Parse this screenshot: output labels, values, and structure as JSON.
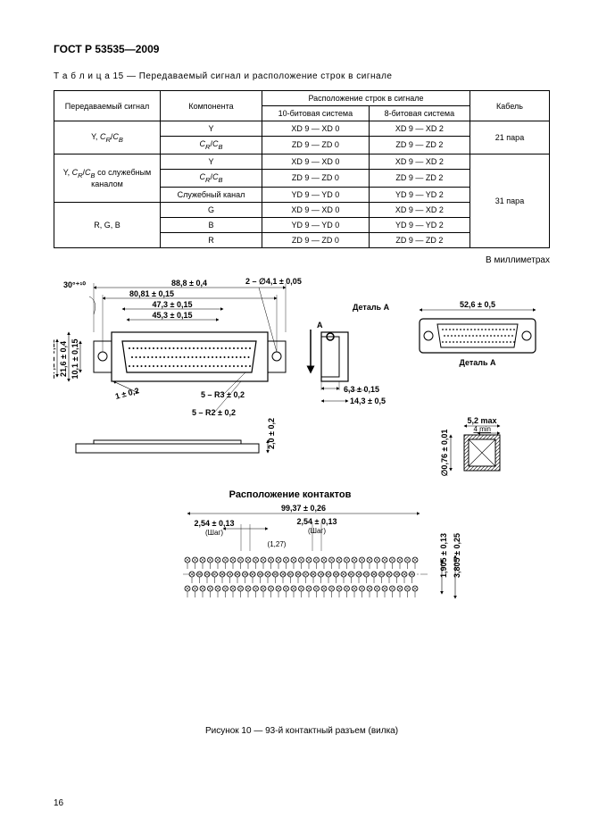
{
  "doc_id": "ГОСТ Р 53535—2009",
  "table_caption": "Т а б л и ц а  15 — Передаваемый сигнал и расположение строк в сигнале",
  "headers": {
    "signal": "Передаваемый сигнал",
    "component": "Компонента",
    "lines_group": "Расположение строк в сигнале",
    "sys10": "10-битовая система",
    "sys8": "8-битовая система",
    "cable": "Кабель"
  },
  "rows": [
    {
      "signal": "Y, Cᵣ/C_B",
      "component": "Y",
      "s10": "XD 9 — XD 0",
      "s8": "XD 9 — XD 2",
      "cable": "21 пара",
      "sigspan": 2,
      "cabspan": 2
    },
    {
      "component": "Cᵣ/C_B",
      "s10": "ZD 9 — ZD 0",
      "s8": "ZD 9 — ZD 2"
    },
    {
      "signal": "Y, Cᵣ/C_B со служебным каналом",
      "component": "Y",
      "s10": "XD 9 — XD 0",
      "s8": "XD 9 — XD 2",
      "sigspan": 3,
      "cable": "31 пара",
      "cabspan": 6
    },
    {
      "component": "Cᵣ/C_B",
      "s10": "ZD 9 — ZD 0",
      "s8": "ZD 9 — ZD 2"
    },
    {
      "component": "Служебный канал",
      "s10": "YD 9 — YD 0",
      "s8": "YD 9 — YD 2"
    },
    {
      "signal": "R, G, B",
      "component": "G",
      "s10": "XD 9 — XD 0",
      "s8": "XD 9 — XD 2",
      "sigspan": 3
    },
    {
      "component": "B",
      "s10": "YD 9 — YD 0",
      "s8": "YD 9 — YD 2"
    },
    {
      "component": "R",
      "s10": "ZD 9 — ZD 0",
      "s8": "ZD 9 — ZD 2"
    }
  ],
  "units_note": "В миллиметрах",
  "labels": {
    "detail_a": "Деталь А",
    "detail_a_arrow": "A",
    "contact_layout": "Расположение контактов",
    "pitch": "(Шаг)"
  },
  "dims": {
    "d1": "88,8 ± 0,4",
    "d2": "80,81 ± 0,15",
    "d3": "47,3 ± 0,15",
    "d4": "45,3 ± 0,15",
    "holes": "2 – ∅4,1 ± 0,05",
    "angle": "30°⁺¹⁰",
    "h1": "10,1 ± 0,15",
    "h2": "21,6 ± 0,4",
    "h3": "17,1 ± 0,15",
    "r1": "5 – R3 ± 0,2",
    "r2": "5 – R2 ± 0,2",
    "taper": "1 ± 0,2",
    "side_w": "6,3 ± 0,15",
    "side_w2": "14,3 ± 0,5",
    "side_h": "2,0 ± 0,2",
    "detail_w": "52,6 ± 0,5",
    "pin_dia": "5,2 max",
    "pin_min": "4 min",
    "pin_d": "∅0,76 ± 0,01",
    "array_w": "99,37 ± 0,26",
    "pitch_v": "2,54 ± 0,13",
    "pitch_h": "2,54 ± 0,13",
    "half_pitch": "(1,27)",
    "rows_h": "1,905 ± 0,13",
    "rows_h2": "3,805 ± 0,25"
  },
  "figure_caption": "Рисунок 10 — 93-й контактный разъем (вилка)",
  "page_number": "16",
  "colors": {
    "line": "#000000",
    "bg": "#ffffff",
    "hatch": "#000000"
  }
}
